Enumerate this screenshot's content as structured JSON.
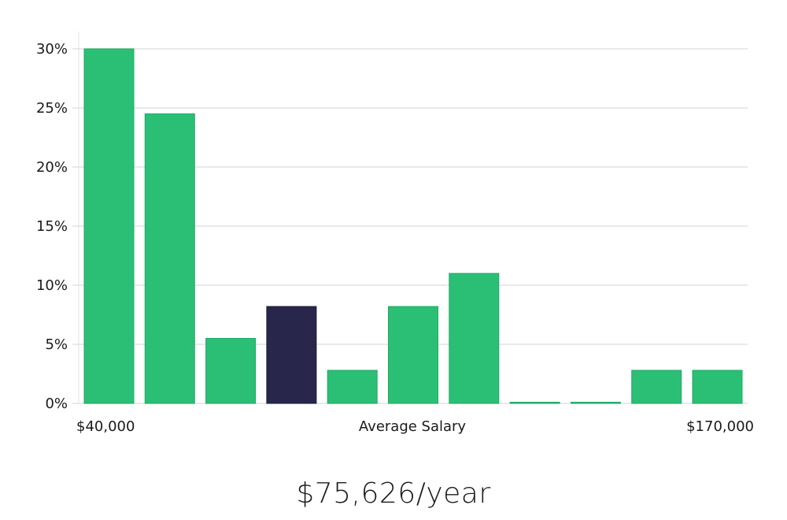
{
  "chart_data": {
    "type": "bar",
    "x_start_label": "$40,000",
    "x_center_label": "Average Salary",
    "x_end_label": "$170,000",
    "y_ticks": [
      "0%",
      "5%",
      "10%",
      "15%",
      "20%",
      "25%",
      "30%"
    ],
    "ylim": [
      0,
      30
    ],
    "values": [
      30,
      24.5,
      5.5,
      8.2,
      2.8,
      8.2,
      11,
      0.1,
      0.1,
      2.8,
      2.8
    ],
    "highlight_index": 3,
    "grid": true,
    "colors": {
      "bar": "#2bbf76",
      "bar_border": "#22a866",
      "highlight": "#28264a",
      "grid": "#e2e2e6"
    }
  },
  "average_salary": "$75,626/year"
}
